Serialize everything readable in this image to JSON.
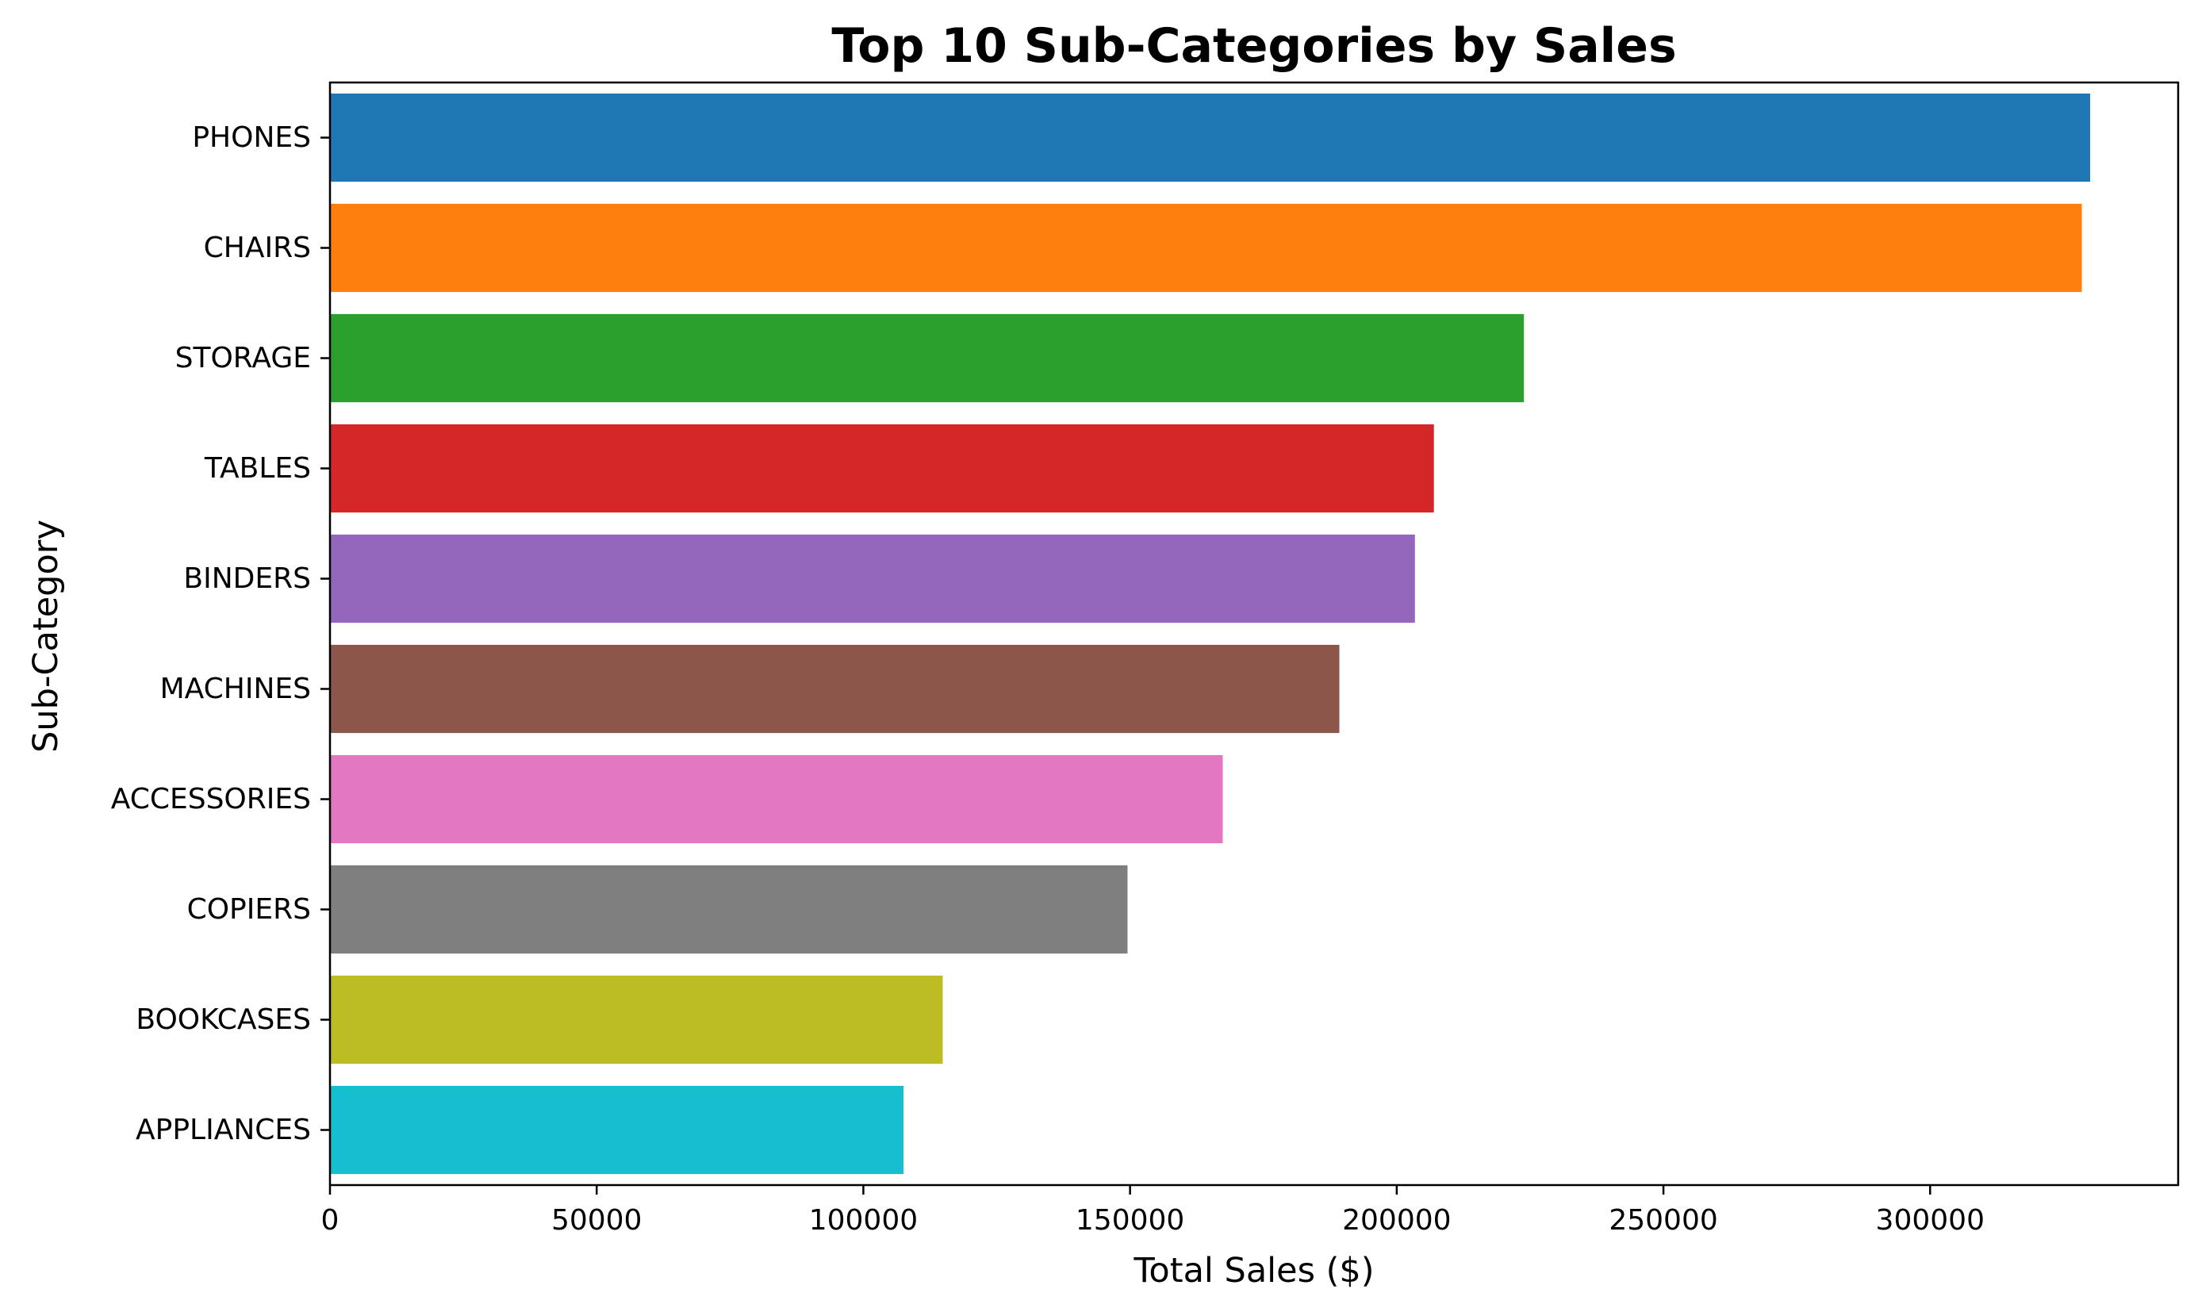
{
  "chart_data": {
    "type": "bar",
    "orientation": "horizontal",
    "title": "Top 10 Sub-Categories by Sales",
    "xlabel": "Total Sales ($)",
    "ylabel": "Sub-Category",
    "categories": [
      "PHONES",
      "CHAIRS",
      "STORAGE",
      "TABLES",
      "BINDERS",
      "MACHINES",
      "ACCESSORIES",
      "COPIERS",
      "BOOKCASES",
      "APPLIANCES"
    ],
    "values": [
      330007,
      328449,
      223844,
      206966,
      203413,
      189239,
      167380,
      149528,
      114880,
      107532
    ],
    "colors": [
      "#1f77b4",
      "#ff7f0e",
      "#2ca02c",
      "#d62728",
      "#9467bd",
      "#8c564b",
      "#e377c2",
      "#7f7f7f",
      "#bcbd22",
      "#17becf"
    ],
    "xticks": [
      0,
      50000,
      100000,
      150000,
      200000,
      250000,
      300000
    ],
    "xtick_labels": [
      "0",
      "50000",
      "100000",
      "150000",
      "200000",
      "250000",
      "300000"
    ],
    "xlim": [
      0,
      346507
    ],
    "grid": false,
    "legend": "none"
  }
}
